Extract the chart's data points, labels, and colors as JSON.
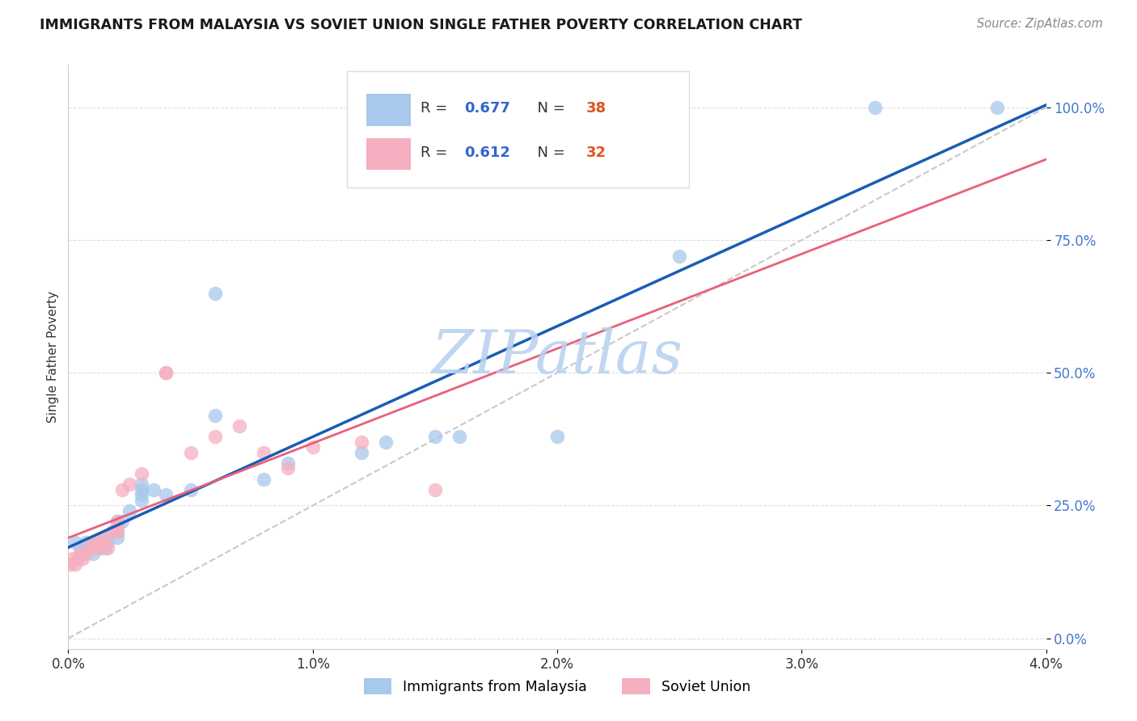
{
  "title": "IMMIGRANTS FROM MALAYSIA VS SOVIET UNION SINGLE FATHER POVERTY CORRELATION CHART",
  "source": "Source: ZipAtlas.com",
  "ylabel": "Single Father Poverty",
  "ytick_values": [
    0.0,
    0.25,
    0.5,
    0.75,
    1.0
  ],
  "ytick_labels": [
    "0.0%",
    "25.0%",
    "50.0%",
    "75.0%",
    "100.0%"
  ],
  "xtick_values": [
    0.0,
    0.01,
    0.02,
    0.03,
    0.04
  ],
  "xtick_labels": [
    "0.0%",
    "1.0%",
    "2.0%",
    "3.0%",
    "4.0%"
  ],
  "xlim": [
    0.0,
    0.04
  ],
  "ylim": [
    -0.02,
    1.08
  ],
  "legend_label1": "Immigrants from Malaysia",
  "legend_label2": "Soviet Union",
  "malaysia_color": "#a8c8ec",
  "soviet_color": "#f5afc0",
  "malaysia_line_color": "#1a5cb5",
  "soviet_line_color": "#e8607a",
  "dashed_line_color": "#c8c8c8",
  "watermark": "ZIPatlas",
  "watermark_color_r": 185,
  "watermark_color_g": 210,
  "watermark_color_b": 240,
  "background_color": "#ffffff",
  "grid_color": "#e0e0e0",
  "ytick_color": "#4477cc",
  "N_color": "#e05520",
  "malaysia_x": [
    0.0003,
    0.0005,
    0.0006,
    0.0007,
    0.0008,
    0.001,
    0.001,
    0.0012,
    0.0013,
    0.0014,
    0.0015,
    0.0015,
    0.0016,
    0.0018,
    0.002,
    0.002,
    0.002,
    0.0022,
    0.0025,
    0.003,
    0.003,
    0.003,
    0.003,
    0.0035,
    0.004,
    0.005,
    0.006,
    0.006,
    0.008,
    0.009,
    0.012,
    0.013,
    0.015,
    0.016,
    0.02,
    0.025,
    0.033,
    0.038
  ],
  "malaysia_y": [
    0.18,
    0.17,
    0.16,
    0.18,
    0.17,
    0.16,
    0.18,
    0.17,
    0.17,
    0.18,
    0.17,
    0.19,
    0.18,
    0.2,
    0.19,
    0.2,
    0.22,
    0.22,
    0.24,
    0.26,
    0.27,
    0.28,
    0.29,
    0.28,
    0.27,
    0.28,
    0.42,
    0.65,
    0.3,
    0.33,
    0.35,
    0.37,
    0.38,
    0.38,
    0.38,
    0.72,
    1.0,
    1.0
  ],
  "soviet_x": [
    0.0001,
    0.0002,
    0.0003,
    0.0004,
    0.0005,
    0.0006,
    0.0007,
    0.0008,
    0.001,
    0.001,
    0.0012,
    0.0013,
    0.0014,
    0.0015,
    0.0016,
    0.0018,
    0.002,
    0.002,
    0.002,
    0.0022,
    0.0025,
    0.003,
    0.004,
    0.004,
    0.005,
    0.006,
    0.007,
    0.008,
    0.009,
    0.01,
    0.012,
    0.015
  ],
  "soviet_y": [
    0.14,
    0.15,
    0.14,
    0.15,
    0.16,
    0.15,
    0.16,
    0.17,
    0.17,
    0.18,
    0.17,
    0.18,
    0.19,
    0.18,
    0.17,
    0.2,
    0.2,
    0.21,
    0.22,
    0.28,
    0.29,
    0.31,
    0.5,
    0.5,
    0.35,
    0.38,
    0.4,
    0.35,
    0.32,
    0.36,
    0.37,
    0.28
  ]
}
